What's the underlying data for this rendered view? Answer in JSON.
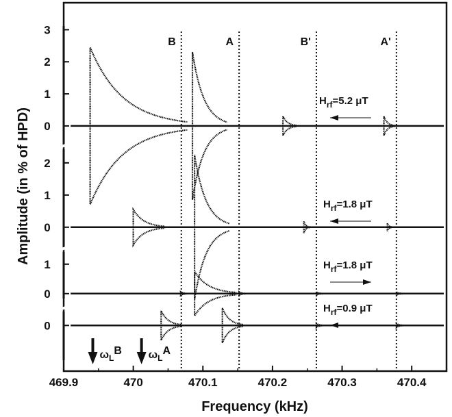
{
  "chart_data": {
    "type": "line",
    "xlabel": "Frequency (kHz)",
    "ylabel": "Amplitude (in % of HPD)",
    "xlim": [
      469.9,
      470.45
    ],
    "x_ticks": [
      "469.9",
      "470",
      "470.1",
      "470.2",
      "470.3",
      "470.4"
    ],
    "x_tick_values": [
      469.9,
      470.0,
      470.1,
      470.2,
      470.3,
      470.4
    ],
    "markers": [
      {
        "label": "B",
        "x": 470.069
      },
      {
        "label": "A",
        "x": 470.152
      },
      {
        "label": "B'",
        "x": 470.263
      },
      {
        "label": "A'",
        "x": 470.378
      }
    ],
    "omega_labels": [
      {
        "text": "ωL",
        "sup": "B",
        "x": 469.93
      },
      {
        "text": "ωL",
        "sup": "A",
        "x": 470.0
      }
    ],
    "panels": [
      {
        "field_label": "Hrf=5.2 μT",
        "sweep": "down",
        "y_ticks": [
          "0",
          "1",
          "2",
          "3"
        ],
        "ylim": [
          -0.6,
          3.5
        ],
        "resonances": [
          {
            "x": 469.938,
            "amp": 2.45,
            "width": 0.14
          },
          {
            "x": 470.085,
            "amp": 2.3,
            "width": 0.05
          },
          {
            "x": 470.215,
            "amp": 0.3,
            "width": 0.02
          },
          {
            "x": 470.36,
            "amp": 0.3,
            "width": 0.015
          }
        ]
      },
      {
        "field_label": "Hrf=1.8 μT",
        "sweep": "down",
        "y_ticks": [
          "0",
          "1",
          "2"
        ],
        "ylim": [
          -0.6,
          2.55
        ],
        "resonances": [
          {
            "x": 470.0,
            "amp": 0.55,
            "width": 0.045
          },
          {
            "x": 470.088,
            "amp": 2.25,
            "width": 0.05
          },
          {
            "x": 470.245,
            "amp": 0.18,
            "width": 0.008
          },
          {
            "x": 470.365,
            "amp": 0.12,
            "width": 0.006
          }
        ]
      },
      {
        "field_label": "Hrf=1.8 μT",
        "sweep": "up",
        "y_ticks": [
          "0",
          "1"
        ],
        "ylim": [
          -0.4,
          1.6
        ],
        "resonances": [
          {
            "x": 470.068,
            "amp": 0.06,
            "width": 0.01
          },
          {
            "x": 470.088,
            "amp": 0.75,
            "width": 0.06
          },
          {
            "x": 470.152,
            "amp": 0.06,
            "width": 0.01
          },
          {
            "x": 470.263,
            "amp": 0.05,
            "width": 0.01
          },
          {
            "x": 470.378,
            "amp": 0.05,
            "width": 0.01
          }
        ]
      },
      {
        "field_label": "Hrf=0.9 μT",
        "sweep": "down",
        "y_ticks": [
          "0"
        ],
        "ylim": [
          -1.4,
          0.75
        ],
        "resonances": [
          {
            "x": 470.04,
            "amp": 0.55,
            "width": 0.03
          },
          {
            "x": 470.128,
            "amp": 0.65,
            "width": 0.03
          },
          {
            "x": 470.263,
            "amp": 0.08,
            "width": 0.01
          },
          {
            "x": 470.378,
            "amp": 0.08,
            "width": 0.01
          }
        ]
      }
    ]
  }
}
